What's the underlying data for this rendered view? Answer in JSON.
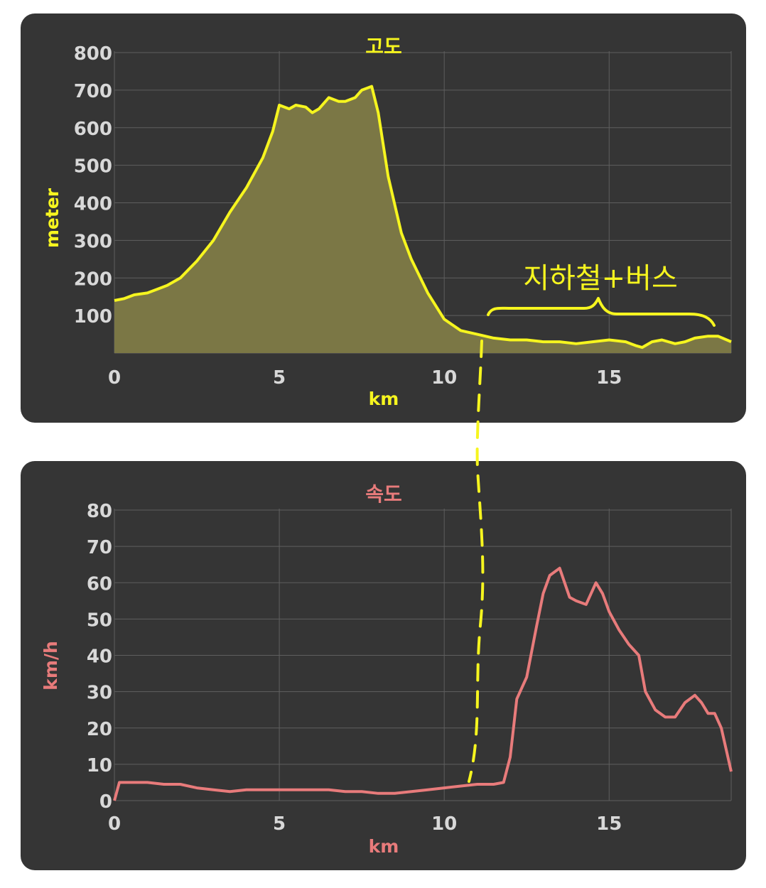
{
  "colors": {
    "panel": "#353535",
    "elevation": "#f6f51f",
    "elevation_fill": "#7b7745",
    "speed": "#e87b7b",
    "tick": "#d8d8d8",
    "grid": "#5f5f5f",
    "annotation": "#f6f51f"
  },
  "annotation": {
    "text": "지하철+버스"
  },
  "chart_data": [
    {
      "type": "area",
      "title": "고도",
      "xlabel": "km",
      "ylabel": "meter",
      "xlim": [
        0,
        18.7
      ],
      "ylim": [
        0,
        800
      ],
      "xticks": [
        "0",
        "5",
        "10",
        "15"
      ],
      "yticks": [
        "100",
        "200",
        "300",
        "400",
        "500",
        "600",
        "700",
        "800"
      ],
      "grid": true,
      "series": [
        {
          "x": [
            0,
            0.3,
            0.6,
            1.0,
            1.3,
            1.6,
            2.0,
            2.5,
            3.0,
            3.5,
            4.0,
            4.5,
            4.8,
            5.0,
            5.3,
            5.5,
            5.8,
            6.0,
            6.2,
            6.5,
            6.8,
            7.0,
            7.3,
            7.5,
            7.8,
            8.0,
            8.3,
            8.7,
            9.0,
            9.5,
            10.0,
            10.5,
            11.0,
            11.5,
            12.0,
            12.5,
            13.0,
            13.5,
            14.0,
            14.5,
            15.0,
            15.5,
            15.8,
            16.0,
            16.3,
            16.6,
            17.0,
            17.3,
            17.6,
            18.0,
            18.3,
            18.7
          ],
          "y": [
            140,
            145,
            155,
            160,
            170,
            180,
            200,
            245,
            300,
            375,
            440,
            520,
            590,
            660,
            650,
            660,
            655,
            640,
            650,
            680,
            670,
            670,
            680,
            700,
            710,
            640,
            470,
            320,
            250,
            160,
            90,
            60,
            50,
            40,
            35,
            35,
            30,
            30,
            25,
            30,
            35,
            30,
            20,
            15,
            30,
            35,
            25,
            30,
            40,
            45,
            45,
            30
          ]
        }
      ]
    },
    {
      "type": "line",
      "title": "속도",
      "xlabel": "km",
      "ylabel": "km/h",
      "xlim": [
        0,
        18.7
      ],
      "ylim": [
        0,
        80
      ],
      "xticks": [
        "0",
        "5",
        "10",
        "15"
      ],
      "yticks": [
        "0",
        "10",
        "20",
        "30",
        "40",
        "50",
        "60",
        "70",
        "80"
      ],
      "grid": true,
      "series": [
        {
          "x": [
            0,
            0.15,
            0.5,
            1.0,
            1.5,
            2.0,
            2.5,
            3.0,
            3.5,
            4.0,
            4.5,
            5.0,
            5.5,
            6.0,
            6.5,
            7.0,
            7.5,
            8.0,
            8.5,
            9.0,
            9.5,
            10.0,
            10.5,
            11.0,
            11.5,
            11.8,
            12.0,
            12.2,
            12.5,
            12.8,
            13.0,
            13.2,
            13.5,
            13.8,
            14.0,
            14.3,
            14.6,
            14.8,
            15.0,
            15.3,
            15.6,
            15.9,
            16.1,
            16.4,
            16.7,
            17.0,
            17.3,
            17.6,
            17.8,
            18.0,
            18.2,
            18.4,
            18.7
          ],
          "y": [
            0,
            5,
            5,
            5,
            4.5,
            4.5,
            3.5,
            3,
            2.5,
            3,
            3,
            3,
            3,
            3,
            3,
            2.5,
            2.5,
            2,
            2,
            2.5,
            3,
            3.5,
            4,
            4.5,
            4.5,
            5,
            12,
            28,
            34,
            48,
            57,
            62,
            64,
            56,
            55,
            54,
            60,
            57,
            52,
            47,
            43,
            40,
            30,
            25,
            23,
            23,
            27,
            29,
            27,
            24,
            24,
            20,
            8
          ]
        }
      ]
    }
  ]
}
